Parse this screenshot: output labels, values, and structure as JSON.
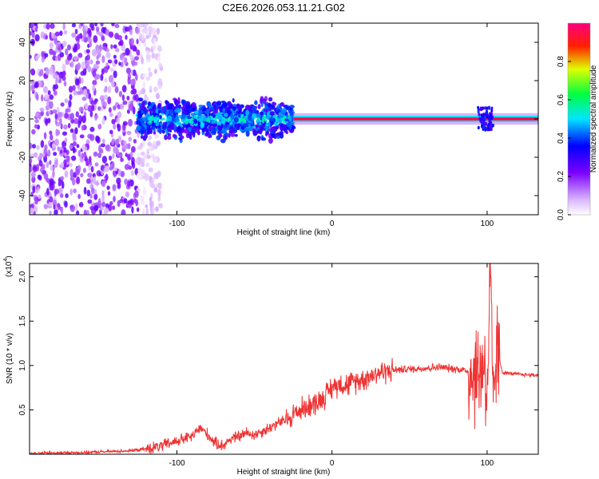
{
  "figure_title": "C2E6.2026.053.11.21.G02",
  "colors": {
    "snr_line": "#ee3333",
    "axis": "#000000",
    "colormap": [
      "#ffffff",
      "#7a00ff",
      "#0000ff",
      "#00e5ff",
      "#00ff40",
      "#e0ff00",
      "#ff2000",
      "#ff0080"
    ]
  },
  "chart_data": [
    {
      "type": "heatmap",
      "title": "",
      "xlabel": "Height of straight line (km)",
      "ylabel": "Frequency (Hz)",
      "xlim": [
        -195,
        133
      ],
      "ylim": [
        -50,
        50
      ],
      "x_ticks": [
        -100,
        0,
        100
      ],
      "y_ticks": [
        -40,
        -20,
        0,
        20,
        40
      ],
      "colorbar": {
        "label": "Normalized spectral amplitude",
        "range": [
          0.0,
          1.0
        ],
        "ticks": [
          0.0,
          0.2,
          0.4,
          0.6,
          0.8
        ],
        "tick_labels": [
          "0.0",
          "0.2",
          "0.4",
          "0.6",
          "0.8"
        ]
      },
      "features": [
        {
          "name": "diffuse noise",
          "x_range": [
            -195,
            -120
          ],
          "frequency_range": [
            -50,
            50
          ],
          "amplitude": 0.15
        },
        {
          "name": "scattered signal",
          "x_range": [
            -125,
            -25
          ],
          "frequency_range": [
            -12,
            12
          ],
          "amplitude": 0.4
        },
        {
          "name": "narrow carrier line",
          "x_range": [
            -25,
            133
          ],
          "frequency": 0,
          "amplitude": 0.95
        }
      ]
    },
    {
      "type": "line",
      "title": "",
      "xlabel": "Height of straight line (km)",
      "ylabel": "SNR (10 * v/v)",
      "y_scale_label": "(x10",
      "y_scale_exponent": "4",
      "xlim": [
        -195,
        133
      ],
      "ylim": [
        0,
        2.15
      ],
      "x_ticks": [
        -100,
        0,
        100
      ],
      "y_ticks": [
        0.5,
        1.0,
        1.5,
        2.0
      ],
      "y_tick_labels": [
        "0.5",
        "1.0",
        "1.5",
        "2.0"
      ],
      "series": [
        {
          "x": [
            -195,
            -160,
            -130,
            -120,
            -110,
            -100,
            -90,
            -85,
            -80,
            -75,
            -70,
            -65,
            -60,
            -55,
            -50,
            -45,
            -40,
            -35,
            -30,
            -25,
            -20,
            -15,
            -10,
            -5,
            0,
            5,
            10,
            15,
            20,
            30,
            40,
            50,
            60,
            70,
            80,
            85,
            90,
            95,
            98,
            100,
            102,
            104,
            106,
            110,
            120,
            133
          ],
          "y": [
            0.01,
            0.02,
            0.04,
            0.06,
            0.09,
            0.15,
            0.2,
            0.3,
            0.22,
            0.12,
            0.1,
            0.18,
            0.2,
            0.24,
            0.22,
            0.26,
            0.3,
            0.35,
            0.38,
            0.45,
            0.5,
            0.55,
            0.58,
            0.65,
            0.75,
            0.8,
            0.78,
            0.82,
            0.85,
            0.92,
            0.95,
            0.96,
            0.97,
            0.98,
            0.96,
            0.95,
            0.92,
            0.9,
            1.1,
            0.6,
            2.1,
            0.4,
            1.2,
            0.92,
            0.9,
            0.89
          ]
        }
      ]
    }
  ]
}
